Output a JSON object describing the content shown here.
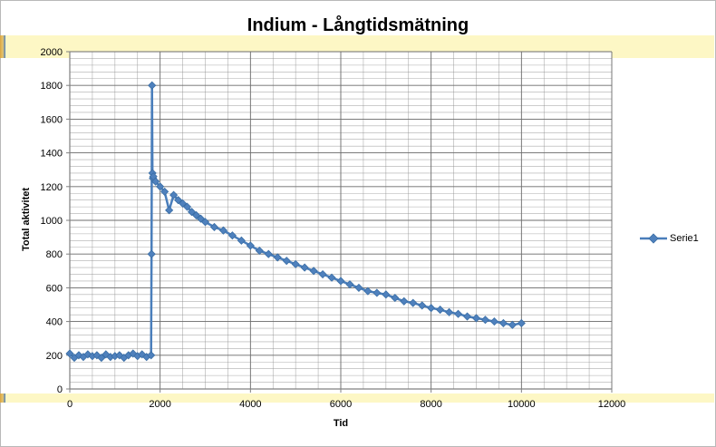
{
  "colors": {
    "series": "#4a7ebb",
    "marker_fill": "#4f81bd",
    "grid": "#8c8c8c",
    "band": "#fdf7c5"
  },
  "chart_data": {
    "type": "scatter",
    "title": "Indium - Långtidsmätning",
    "xlabel": "Tid",
    "ylabel": "Total aktivitet",
    "xlim": [
      0,
      12000
    ],
    "ylim": [
      0,
      2000
    ],
    "xticks": [
      0,
      2000,
      4000,
      6000,
      8000,
      10000,
      12000
    ],
    "yticks": [
      0,
      200,
      400,
      600,
      800,
      1000,
      1200,
      1400,
      1600,
      1800,
      2000
    ],
    "grid": true,
    "legend": "right",
    "series": [
      {
        "name": "Serie1",
        "x": [
          0,
          100,
          200,
          300,
          400,
          500,
          600,
          700,
          800,
          900,
          1000,
          1100,
          1200,
          1300,
          1400,
          1500,
          1600,
          1700,
          1800,
          1810,
          1820,
          1830,
          1840,
          1850,
          1900,
          2000,
          2100,
          2200,
          2300,
          2400,
          2500,
          2600,
          2700,
          2800,
          2900,
          3000,
          3200,
          3400,
          3600,
          3800,
          4000,
          4200,
          4400,
          4600,
          4800,
          5000,
          5200,
          5400,
          5600,
          5800,
          6000,
          6200,
          6400,
          6600,
          6800,
          7000,
          7200,
          7400,
          7600,
          7800,
          8000,
          8200,
          8400,
          8600,
          8800,
          9000,
          9200,
          9400,
          9600,
          9800,
          10000
        ],
        "y": [
          210,
          185,
          200,
          190,
          205,
          195,
          200,
          185,
          205,
          190,
          195,
          200,
          185,
          200,
          210,
          195,
          205,
          190,
          200,
          800,
          1800,
          1280,
          1250,
          1260,
          1230,
          1200,
          1170,
          1060,
          1150,
          1120,
          1100,
          1080,
          1050,
          1030,
          1010,
          990,
          960,
          940,
          910,
          880,
          850,
          820,
          800,
          780,
          760,
          740,
          720,
          700,
          680,
          660,
          640,
          620,
          600,
          580,
          570,
          560,
          540,
          520,
          510,
          495,
          480,
          470,
          455,
          445,
          430,
          420,
          410,
          400,
          390,
          380,
          390
        ]
      }
    ]
  }
}
